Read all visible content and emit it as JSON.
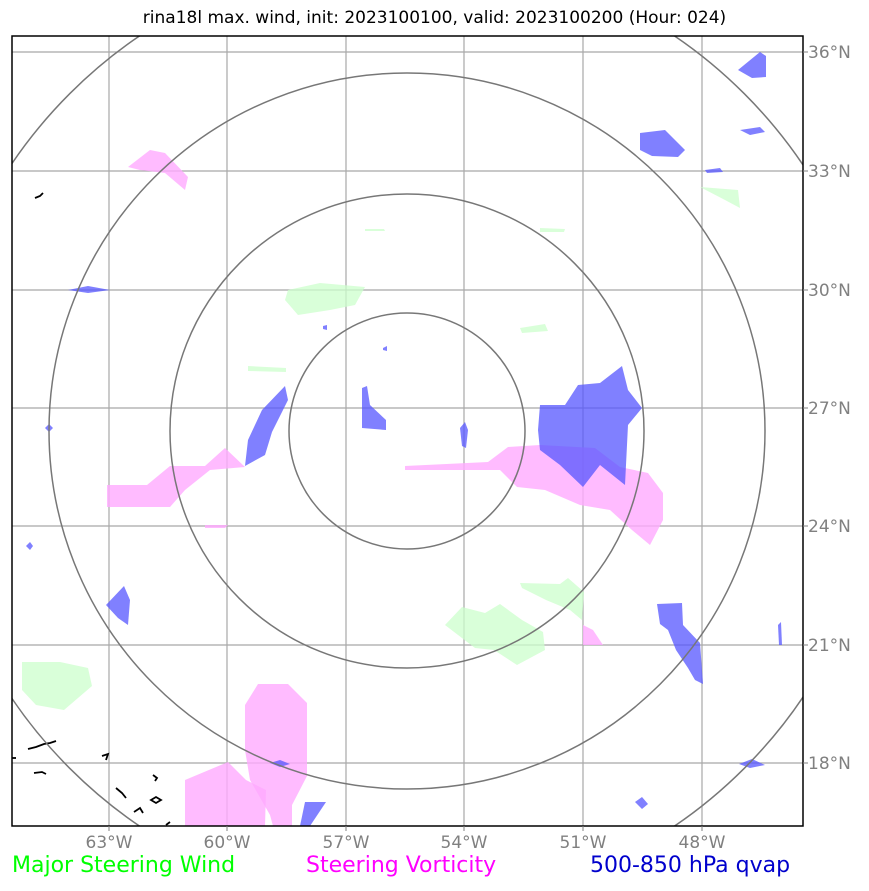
{
  "title": "rina18l max. wind, init: 2023100100, valid: 2023100200 (Hour: 024)",
  "map": {
    "lon_ticks": [
      "63°W",
      "60°W",
      "57°W",
      "54°W",
      "51°W",
      "48°W"
    ],
    "lat_ticks": [
      "36°N",
      "33°N",
      "30°N",
      "27°N",
      "24°N",
      "21°N",
      "18°N"
    ],
    "range_rings": 4
  },
  "legend": {
    "major_steering_wind": "Major Steering Wind",
    "steering_vorticity": "Steering Vorticity",
    "qvap": "500-850 hPa qvap"
  },
  "colors": {
    "wind": "#00ff00",
    "vorticity": "#ff00ff",
    "qvap": "#0000ff",
    "grid": "#a0a0a0",
    "rings": "#777777"
  }
}
